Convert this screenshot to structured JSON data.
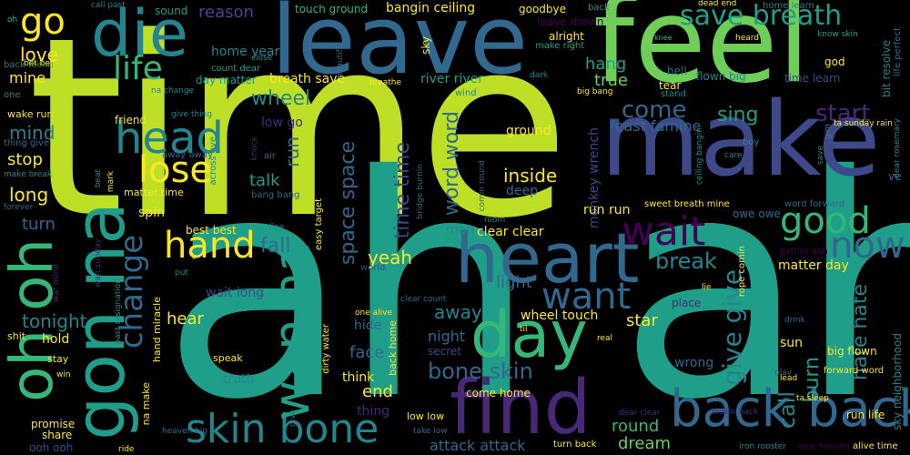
{
  "colors": {
    "background": "#000000",
    "yellow_green": "#bddf26",
    "green": "#6ece58",
    "sea_green": "#35b779",
    "teal": "#1f9e89",
    "dark_teal": "#25858e",
    "blue": "#31688e",
    "slate": "#3e4989",
    "purple": "#482878",
    "dark_purple": "#440154"
  },
  "words": {
    "time": "time",
    "ah_ah": "ah ah",
    "feel": "feel",
    "make": "make",
    "leave": "leave",
    "die": "die",
    "heart": "heart",
    "day": "day",
    "find": "find",
    "back_back": "back back",
    "skin_bone": "skin bone",
    "gon_na": "gon na",
    "oh_oh": "oh oh",
    "wan_na": "wan na",
    "save_breath": "save breath",
    "head": "head",
    "lose": "lose",
    "hand": "hand",
    "wait": "wait",
    "good": "good",
    "now": "now",
    "go": "go",
    "life": "life",
    "love": "love",
    "change": "change",
    "want": "want",
    "break": "break",
    "come": "come",
    "start": "start",
    "sing": "sing",
    "hang": "hang",
    "true": "true",
    "give_give": "give give",
    "hate_hate": "hate hate",
    "bone_skin": "bone skin",
    "call": "call",
    "burn": "burn",
    "round": "round",
    "dream": "dream",
    "attack_attack": "attack attack",
    "yeah": "yeah",
    "fall": "fall",
    "inside": "inside",
    "ground": "ground",
    "word_word": "word word",
    "time_time": "time time",
    "space_space": "space space",
    "light": "light",
    "away": "away",
    "night": "night",
    "end": "end",
    "face": "face",
    "hide": "hide",
    "star": "star",
    "wheel_touch": "wheel touch",
    "hear": "hear",
    "tonight": "tonight",
    "turn": "turn",
    "long": "long",
    "stop": "stop",
    "mind": "mind",
    "mine": "mine",
    "wheel": "wheel",
    "run": "run",
    "talk": "talk",
    "friend": "friend",
    "reason": "reason",
    "sound_reason": "sound",
    "touch_ground": "touch ground",
    "bangin_ceiling": "bangin ceiling",
    "goodbye": "goodbye",
    "back_small": "back",
    "leave_drown": "leave drown",
    "alright": "alright",
    "make_right": "make right",
    "home_year": "home year",
    "breath_save": "breath save",
    "river_river": "river river",
    "day_matter": "day matter",
    "count_dear": "count dear",
    "low_go": "low go",
    "god": "god",
    "hell": "hell",
    "tear": "tear",
    "flown_big": "flown big",
    "time_learn": "time learn",
    "bit_resolve": "bit resolve",
    "life_perfect": "life perfect",
    "know_skin": "know skin",
    "home_learn": "home learn",
    "dead_end": "dead end",
    "heard": "heard",
    "feast_famine": "feast famine",
    "monkey_wrench": "monkey wrench",
    "run_run": "run run",
    "sweet_breath_mine": "sweet breath mine",
    "owe_owe": "owe owe",
    "word_forward": "word forward",
    "gather_ash": "gather ash",
    "matter_day": "matter day",
    "rope_comin": "rope comin",
    "place": "place",
    "sun": "sun",
    "big_flown": "big flown",
    "wrong": "wrong",
    "sky_neighborhood": "sky neighborhood",
    "forward_word": "forward word",
    "run_life": "run life",
    "alive_time": "alive time",
    "dear_heaven": "dear heaven",
    "iron_rooster": "iron rooster",
    "lookin_back": "lookin back",
    "dear_clear": "dear clear",
    "turn_back": "turn back",
    "take_low": "take low",
    "low_low": "low low",
    "thing": "thing",
    "come_home": "come home",
    "back_home": "back home",
    "clear_clear": "clear clear",
    "think": "think",
    "secret": "secret",
    "world": "world",
    "man": "man",
    "deep": "deep",
    "dirty_water": "dirty water",
    "truth": "truth",
    "speak": "speak",
    "hand_miracle": "hand miracle",
    "na_make": "na make",
    "wait_long": "wait long",
    "best_best": "best best",
    "spin": "spin",
    "matter_time": "matter time",
    "easy_target": "easy target",
    "bang_bang": "bang bang",
    "promise": "promise",
    "share": "share",
    "ooh_ooh": "ooh ooh",
    "hold": "hold",
    "shit": "shit",
    "stay": "stay",
    "win": "win",
    "make_break": "make break",
    "wake_run": "wake run",
    "thing_give": "thing give",
    "forever": "forever",
    "back_feelin": "back feelin",
    "one": "one",
    "bet_bet": "bet bet",
    "oh": "oh",
    "call_past": "call past",
    "close": "close",
    "beautiful": "beautiful",
    "breathe": "breathe",
    "sky": "sky",
    "na_change": "na change",
    "give_thing": "give thing",
    "away_away": "away away",
    "across_eye": "across eye",
    "mark": "mark",
    "beat": "beat",
    "air": "air",
    "knock": "knock",
    "wind": "wind",
    "dark": "dark",
    "big_bang": "big bang",
    "stand": "stand",
    "knee": "knee",
    "boy": "boy",
    "care": "care",
    "ta_sunday_rain": "ta sunday rain",
    "dear_rosemary": "dear rosemary",
    "save": "save",
    "ve": "ve",
    "ceiling_bangin": "ceiling bangin",
    "bridge_burnin": "bridge burnin",
    "comin_round": "comin round",
    "room": "room",
    "line": "line",
    "put": "put",
    "past_resignation": "past resignation",
    "war_mind": "war mind",
    "wan_sunday": "wan sunday",
    "heaven_big": "heaven big",
    "ride": "ride",
    "lie": "lie",
    "one_alive": "one alive",
    "clear_count": "clear count",
    "til": "til",
    "real": "real",
    "drink": "drink",
    "play": "play",
    "lead": "lead",
    "ta_sleep": "ta sleep",
    "give_small": "give",
    "gim": "gim"
  }
}
